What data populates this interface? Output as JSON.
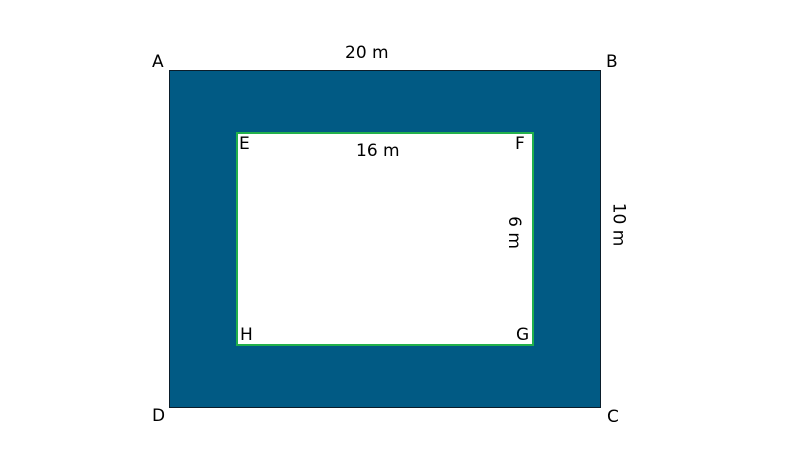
{
  "colors": {
    "outer_fill": "#015a84",
    "inner_fill": "#ffffff",
    "inner_border": "#22b04b",
    "outer_border": "#0b1d2a"
  },
  "vertices": {
    "outer": [
      "A",
      "B",
      "C",
      "D"
    ],
    "inner": [
      "E",
      "F",
      "G",
      "H"
    ]
  },
  "dimensions": {
    "outer_width": "20 m",
    "outer_height": "10 m",
    "inner_width": "16 m",
    "inner_height": "6 m"
  }
}
